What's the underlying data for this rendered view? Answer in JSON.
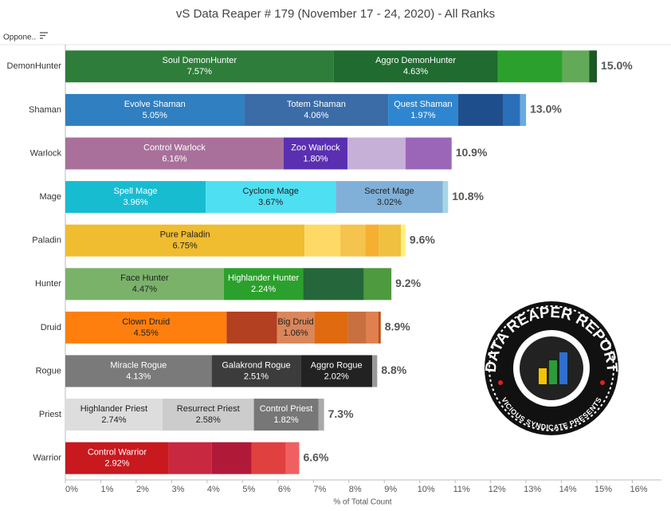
{
  "chart_data": {
    "type": "stacked-bar-horizontal",
    "title": "vS Data Reaper # 179 (November 17 - 24, 2020) - All Ranks",
    "header_label": "Oppone..",
    "x_label": "% of Total Count",
    "xlim": [
      0,
      16
    ],
    "xticks": [
      {
        "value": 0,
        "label": "0%"
      },
      {
        "value": 1,
        "label": "1%"
      },
      {
        "value": 2,
        "label": "2%"
      },
      {
        "value": 3,
        "label": "3%"
      },
      {
        "value": 4,
        "label": "4%"
      },
      {
        "value": 5,
        "label": "5%"
      },
      {
        "value": 6,
        "label": "6%"
      },
      {
        "value": 7,
        "label": "7%"
      },
      {
        "value": 8,
        "label": "8%"
      },
      {
        "value": 9,
        "label": "9%"
      },
      {
        "value": 10,
        "label": "10%"
      },
      {
        "value": 11,
        "label": "11%"
      },
      {
        "value": 12,
        "label": "12%"
      },
      {
        "value": 13,
        "label": "13%"
      },
      {
        "value": 14,
        "label": "14%"
      },
      {
        "value": 15,
        "label": "15%"
      },
      {
        "value": 16,
        "label": "16%"
      }
    ],
    "logo": {
      "title": "DATA REAPER REPORT",
      "subtitle": "VICIOUS SYNDICATE PRESENTS"
    },
    "bars": [
      {
        "category": "DemonHunter",
        "total": 15.0,
        "total_label": "15.0%",
        "segments": [
          {
            "name": "Soul DemonHunter",
            "value": 7.57,
            "value_label": "7.57%",
            "color": "#2e7d3a"
          },
          {
            "name": "Aggro DemonHunter",
            "value": 4.63,
            "value_label": "4.63%",
            "color": "#1f6b30"
          },
          {
            "value": 1.82,
            "color": "#2ca02c"
          },
          {
            "value": 0.76,
            "color": "#62aa58"
          },
          {
            "value": 0.22,
            "color": "#1a5a26"
          }
        ]
      },
      {
        "category": "Shaman",
        "total": 13.0,
        "total_label": "13.0%",
        "segments": [
          {
            "name": "Evolve Shaman",
            "value": 5.05,
            "value_label": "5.05%",
            "color": "#2f7fc1"
          },
          {
            "name": "Totem Shaman",
            "value": 4.06,
            "value_label": "4.06%",
            "color": "#3b6ca8"
          },
          {
            "name": "Quest Shaman",
            "value": 1.97,
            "value_label": "1.97%",
            "color": "#2f86d0"
          },
          {
            "value": 1.28,
            "color": "#1f4e8c"
          },
          {
            "value": 0.47,
            "color": "#2a6fb8"
          },
          {
            "value": 0.17,
            "color": "#6aaade"
          }
        ]
      },
      {
        "category": "Warlock",
        "total": 10.9,
        "total_label": "10.9%",
        "segments": [
          {
            "name": "Control Warlock",
            "value": 6.16,
            "value_label": "6.16%",
            "color": "#a8709a"
          },
          {
            "name": "Zoo Warlock",
            "value": 1.8,
            "value_label": "1.80%",
            "color": "#5a2fb0"
          },
          {
            "value": 1.64,
            "color": "#c6b0d8"
          },
          {
            "value": 1.3,
            "color": "#9b66b8"
          }
        ]
      },
      {
        "category": "Mage",
        "total": 10.8,
        "total_label": "10.8%",
        "segments": [
          {
            "name": "Spell Mage",
            "value": 3.96,
            "value_label": "3.96%",
            "color": "#17bcd1"
          },
          {
            "name": "Cyclone Mage",
            "value": 3.67,
            "value_label": "3.67%",
            "color": "#4ee0f2"
          },
          {
            "name": "Secret Mage",
            "value": 3.02,
            "value_label": "3.02%",
            "color": "#80b0d8"
          },
          {
            "value": 0.15,
            "color": "#a8d4e4"
          }
        ]
      },
      {
        "category": "Paladin",
        "total": 9.6,
        "total_label": "9.6%",
        "segments": [
          {
            "name": "Pure Paladin",
            "value": 6.75,
            "value_label": "6.75%",
            "color": "#f0bc30"
          },
          {
            "value": 1.01,
            "color": "#ffd966"
          },
          {
            "value": 0.7,
            "color": "#f4c44e"
          },
          {
            "value": 0.38,
            "color": "#f5b030"
          },
          {
            "value": 0.63,
            "color": "#f0c040"
          },
          {
            "value": 0.13,
            "color": "#fff080"
          }
        ]
      },
      {
        "category": "Hunter",
        "total": 9.2,
        "total_label": "9.2%",
        "segments": [
          {
            "name": "Face Hunter",
            "value": 4.47,
            "value_label": "4.47%",
            "color": "#7ab26a"
          },
          {
            "name": "Highlander Hunter",
            "value": 2.24,
            "value_label": "2.24%",
            "color": "#2ca02c"
          },
          {
            "value": 1.71,
            "color": "#25663a"
          },
          {
            "value": 0.78,
            "color": "#4e9a3e"
          }
        ]
      },
      {
        "category": "Druid",
        "total": 8.9,
        "total_label": "8.9%",
        "segments": [
          {
            "name": "Clown Druid",
            "value": 4.55,
            "value_label": "4.55%",
            "color": "#ff7f0e"
          },
          {
            "value": 1.42,
            "color": "#b34020"
          },
          {
            "name": "Big Druid",
            "value": 1.06,
            "value_label": "1.06%",
            "color": "#d9865a"
          },
          {
            "value": 0.94,
            "color": "#e06a10"
          },
          {
            "value": 0.52,
            "color": "#c87040"
          },
          {
            "value": 0.34,
            "color": "#e08050"
          },
          {
            "value": 0.07,
            "color": "#c05010"
          }
        ]
      },
      {
        "category": "Rogue",
        "total": 8.8,
        "total_label": "8.8%",
        "segments": [
          {
            "name": "Miracle Rogue",
            "value": 4.13,
            "value_label": "4.13%",
            "color": "#7a7a7a"
          },
          {
            "name": "Galakrond Rogue",
            "value": 2.51,
            "value_label": "2.51%",
            "color": "#3c3c3c"
          },
          {
            "name": "Aggro Rogue",
            "value": 2.02,
            "value_label": "2.02%",
            "color": "#222222"
          },
          {
            "value": 0.14,
            "color": "#999999"
          }
        ]
      },
      {
        "category": "Priest",
        "total": 7.3,
        "total_label": "7.3%",
        "segments": [
          {
            "name": "Highlander Priest",
            "value": 2.74,
            "value_label": "2.74%",
            "color": "#dddddd"
          },
          {
            "name": "Resurrect Priest",
            "value": 2.58,
            "value_label": "2.58%",
            "color": "#cccccc"
          },
          {
            "name": "Control Priest",
            "value": 1.82,
            "value_label": "1.82%",
            "color": "#777777"
          },
          {
            "value": 0.16,
            "color": "#aaaaaa"
          }
        ]
      },
      {
        "category": "Warrior",
        "total": 6.6,
        "total_label": "6.6%",
        "segments": [
          {
            "name": "Control Warrior",
            "value": 2.92,
            "value_label": "2.92%",
            "color": "#c8191e"
          },
          {
            "value": 1.21,
            "color": "#c82840"
          },
          {
            "value": 1.12,
            "color": "#b01a38"
          },
          {
            "value": 0.97,
            "color": "#e04040"
          },
          {
            "value": 0.38,
            "color": "#f06060"
          }
        ]
      }
    ]
  }
}
